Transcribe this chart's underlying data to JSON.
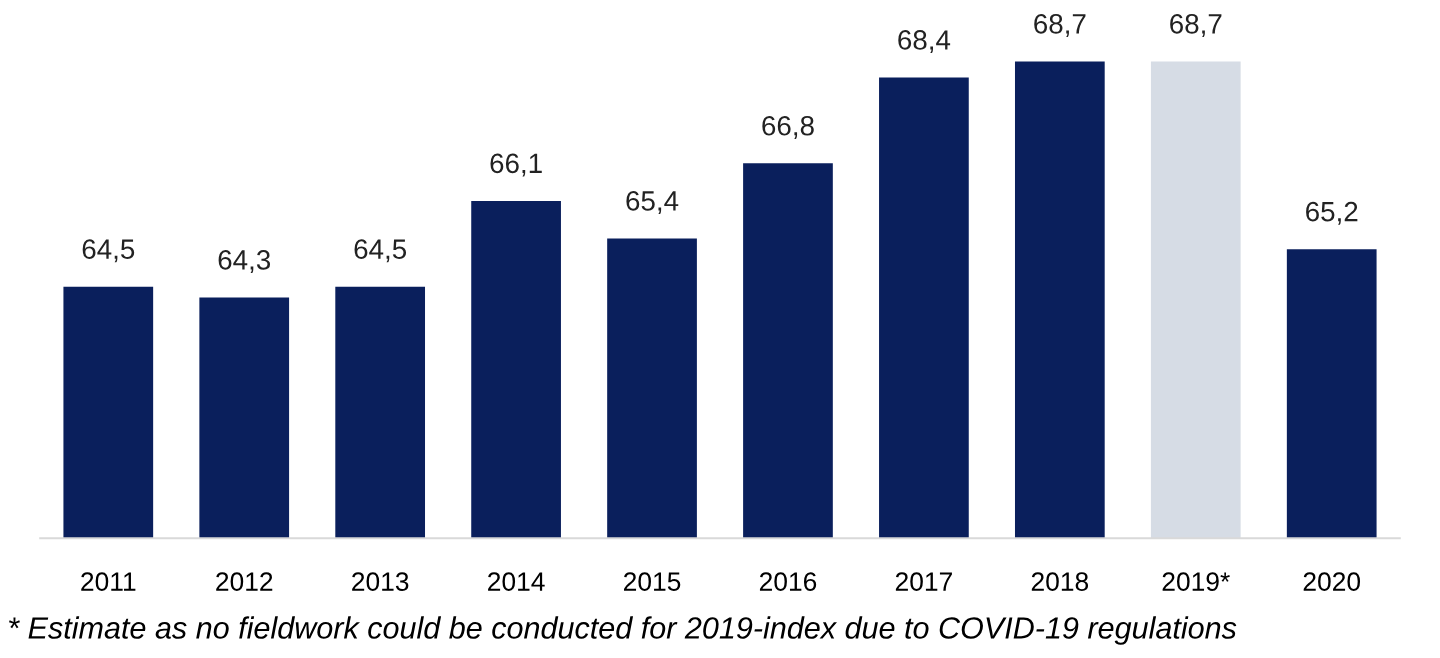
{
  "chart_data": {
    "type": "bar",
    "categories": [
      "2011",
      "2012",
      "2013",
      "2014",
      "2015",
      "2016",
      "2017",
      "2018",
      "2019*",
      "2020"
    ],
    "values": [
      64.5,
      64.3,
      64.5,
      66.1,
      65.4,
      66.8,
      68.4,
      68.7,
      68.7,
      65.2
    ],
    "colors": [
      "#0a1f5c",
      "#0a1f5c",
      "#0a1f5c",
      "#0a1f5c",
      "#0a1f5c",
      "#0a1f5c",
      "#0a1f5c",
      "#0a1f5c",
      "#d6dce5",
      "#0a1f5c"
    ],
    "value_labels": [
      "64,5",
      "64,3",
      "64,5",
      "66,1",
      "65,4",
      "66,8",
      "68,4",
      "68,7",
      "68,7",
      "65,2"
    ],
    "tick_labels": "x",
    "grid": false,
    "legend": false,
    "annotations": [
      "* Estimate as no fieldwork could be conducted for 2019-index due to COVID-19 regulations"
    ]
  }
}
